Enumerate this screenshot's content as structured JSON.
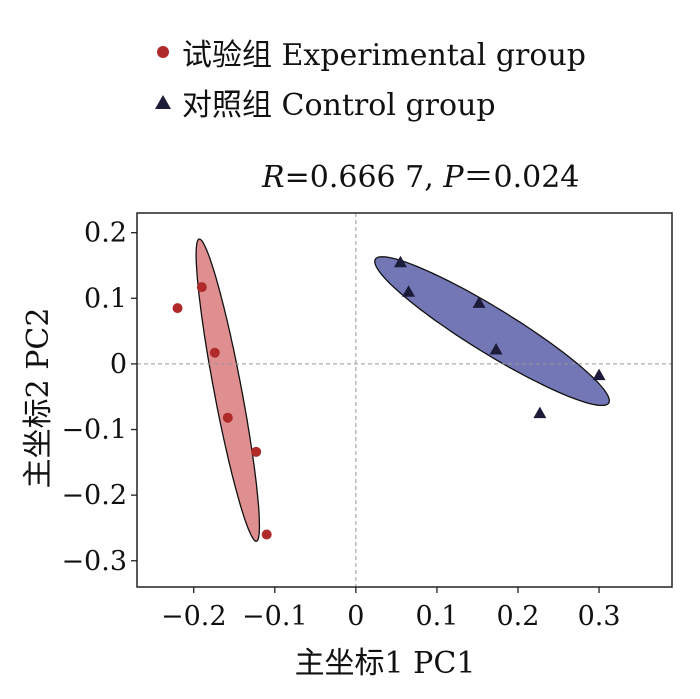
{
  "chart_data": {
    "type": "scatter",
    "title": "",
    "xlabel": "主坐标1 PC1",
    "ylabel": "主坐标2 PC2",
    "xlim": [
      -0.27,
      0.39
    ],
    "ylim": [
      -0.34,
      0.23
    ],
    "xticks": [
      -0.2,
      -0.1,
      0,
      0.1,
      0.2,
      0.3
    ],
    "xtick_labels": [
      "−0.2",
      "−0.1",
      "0",
      "0.1",
      "0.2",
      "0.3"
    ],
    "yticks": [
      0.2,
      0.1,
      0,
      -0.1,
      -0.2,
      -0.3
    ],
    "ytick_labels": [
      "0.2",
      "0.1",
      "0",
      "−0.1",
      "−0.2",
      "−0.3"
    ],
    "reference_lines": {
      "x": 0,
      "y": 0,
      "style": "dashed"
    },
    "grid": false,
    "legend_position": "top",
    "annotation": {
      "R_label": "R",
      "R_value": "=0.666 7, ",
      "P_label": "P",
      "P_value": "＝0.024"
    },
    "series": [
      {
        "name": "试验组 Experimental group",
        "marker": "circle",
        "color": "#b02a2a",
        "ellipse_color": "#d97b7b",
        "points": [
          {
            "x": -0.22,
            "y": 0.085
          },
          {
            "x": -0.19,
            "y": 0.117
          },
          {
            "x": -0.174,
            "y": 0.017
          },
          {
            "x": -0.158,
            "y": -0.082
          },
          {
            "x": -0.123,
            "y": -0.134
          },
          {
            "x": -0.11,
            "y": -0.26
          }
        ],
        "ellipse": {
          "cx": -0.158,
          "cy": -0.04,
          "rx": 0.233,
          "ry": 0.017,
          "angle_deg": -81.3
        }
      },
      {
        "name": "对照组 Control group",
        "marker": "triangle",
        "color": "#1c1c3a",
        "ellipse_color": "#5a5fa8",
        "points": [
          {
            "x": 0.055,
            "y": 0.155
          },
          {
            "x": 0.065,
            "y": 0.11
          },
          {
            "x": 0.152,
            "y": 0.093
          },
          {
            "x": 0.173,
            "y": 0.022
          },
          {
            "x": 0.227,
            "y": -0.075
          },
          {
            "x": 0.3,
            "y": -0.017
          }
        ],
        "ellipse": {
          "cx": 0.168,
          "cy": 0.05,
          "rx": 0.181,
          "ry": 0.032,
          "angle_deg": -37.6
        }
      }
    ]
  }
}
